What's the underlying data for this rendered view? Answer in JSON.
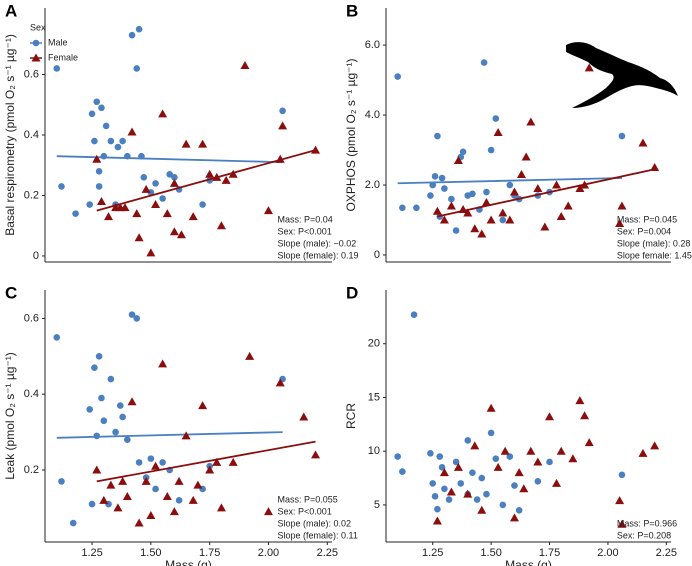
{
  "chart_data": [
    {
      "type": "scatter",
      "panel_label": "A",
      "ylabel": "Basal respirometry (pmol O₂ s⁻¹ µg⁻¹)",
      "xlim": [
        1.05,
        2.27
      ],
      "ylim": [
        -0.02,
        0.82
      ],
      "yticks": [
        0,
        0.2,
        0.4,
        0.6
      ],
      "legend": {
        "title": "Sex",
        "position": "top-left"
      },
      "series": [
        {
          "name": "Male",
          "color": "#4a7fc0",
          "marker": "circle",
          "x": [
            1.1,
            1.12,
            1.18,
            1.24,
            1.25,
            1.26,
            1.27,
            1.28,
            1.28,
            1.29,
            1.3,
            1.31,
            1.33,
            1.35,
            1.36,
            1.38,
            1.4,
            1.42,
            1.44,
            1.45,
            1.46,
            1.47,
            1.5,
            1.52,
            1.55,
            1.58,
            1.6,
            1.62,
            1.72,
            1.75,
            2.06
          ],
          "values": [
            0.62,
            0.23,
            0.14,
            0.17,
            0.47,
            0.38,
            0.51,
            0.28,
            0.23,
            0.49,
            0.33,
            0.43,
            0.38,
            0.17,
            0.36,
            0.38,
            0.33,
            0.73,
            0.62,
            0.75,
            0.33,
            0.26,
            0.21,
            0.24,
            0.19,
            0.27,
            0.26,
            0.22,
            0.17,
            0.25,
            0.48
          ],
          "trend": {
            "x": [
              1.1,
              2.06
            ],
            "values": [
              0.33,
              0.31
            ]
          }
        },
        {
          "name": "Female",
          "color": "#8b0e0e",
          "marker": "triangle",
          "x": [
            1.27,
            1.29,
            1.32,
            1.35,
            1.37,
            1.39,
            1.42,
            1.44,
            1.45,
            1.48,
            1.5,
            1.52,
            1.55,
            1.57,
            1.6,
            1.63,
            1.65,
            1.68,
            1.72,
            1.75,
            1.78,
            1.82,
            1.85,
            1.9,
            2.0,
            2.06,
            2.05,
            2.2,
            1.8,
            1.6
          ],
          "values": [
            0.32,
            0.18,
            0.13,
            0.16,
            0.16,
            0.16,
            0.41,
            0.14,
            0.06,
            0.22,
            0.01,
            0.17,
            0.47,
            0.14,
            0.08,
            0.07,
            0.37,
            0.13,
            0.37,
            0.27,
            0.26,
            0.25,
            0.27,
            0.63,
            0.15,
            0.43,
            0.32,
            0.35,
            0.1,
            0.24
          ],
          "trend": {
            "x": [
              1.27,
              2.2
            ],
            "values": [
              0.15,
              0.35
            ]
          }
        }
      ],
      "annotations": [
        "Mass: P=0.04",
        "Sex: P<0.001",
        "Slope (male): −0.02",
        "Slope (female): 0.19"
      ]
    },
    {
      "type": "scatter",
      "panel_label": "B",
      "ylabel": "OXPHOS (pmol O₂ s⁻¹ µg⁻¹)",
      "xlim": [
        1.05,
        2.27
      ],
      "ylim": [
        -0.2,
        7.06
      ],
      "yticks": [
        0,
        {
          "value": 2,
          "label": "2.0"
        },
        {
          "value": 4,
          "label": "4.0"
        },
        {
          "value": 6,
          "label": "6.0"
        }
      ],
      "series": [
        {
          "color": "#4a7fc0",
          "marker": "circle",
          "x": [
            1.1,
            1.12,
            1.18,
            1.24,
            1.25,
            1.26,
            1.27,
            1.28,
            1.29,
            1.3,
            1.33,
            1.35,
            1.37,
            1.38,
            1.4,
            1.42,
            1.45,
            1.47,
            1.48,
            1.5,
            1.52,
            1.55,
            1.58,
            1.6,
            1.62,
            1.7,
            1.75,
            2.06
          ],
          "values": [
            5.1,
            1.35,
            1.35,
            1.7,
            2.0,
            2.25,
            3.4,
            1.1,
            2.2,
            1.9,
            1.6,
            0.7,
            2.8,
            2.95,
            1.7,
            1.75,
            1.3,
            5.5,
            1.8,
            3.0,
            3.9,
            1.0,
            2.0,
            1.7,
            1.6,
            1.7,
            1.8,
            3.4
          ],
          "trend": {
            "x": [
              1.1,
              2.06
            ],
            "values": [
              2.05,
              2.2
            ]
          }
        },
        {
          "color": "#8b0e0e",
          "marker": "triangle",
          "x": [
            1.27,
            1.3,
            1.33,
            1.36,
            1.38,
            1.4,
            1.43,
            1.46,
            1.48,
            1.5,
            1.53,
            1.55,
            1.58,
            1.6,
            1.63,
            1.65,
            1.67,
            1.7,
            1.73,
            1.78,
            1.8,
            1.83,
            1.88,
            1.9,
            1.92,
            2.05,
            2.06,
            2.15,
            2.2
          ],
          "values": [
            1.25,
            1.0,
            1.4,
            2.7,
            1.3,
            1.2,
            0.75,
            0.6,
            1.5,
            1.0,
            3.5,
            1.2,
            1.0,
            1.8,
            2.3,
            2.8,
            3.8,
            1.9,
            0.8,
            2.0,
            1.1,
            1.4,
            1.9,
            2.0,
            5.35,
            0.9,
            1.4,
            3.2,
            2.5
          ],
          "trend": {
            "x": [
              1.27,
              2.2
            ],
            "values": [
              1.1,
              2.45
            ]
          }
        }
      ],
      "annotations": [
        "Mass: P=0.045",
        "Sex: P=0.004",
        "Slope (male): 0.28",
        "Slope female: 1.45"
      ]
    },
    {
      "type": "scatter",
      "panel_label": "C",
      "ylabel": "Leak (pmol O₂ s⁻¹ µg⁻¹)",
      "xlabel": "Mass (g)",
      "xlim": [
        1.05,
        2.27
      ],
      "ylim": [
        0.01,
        0.675
      ],
      "yticks": [
        0.2,
        0.4,
        0.6
      ],
      "xticks": [
        1.25,
        {
          "value": 1.5,
          "label": "1.50"
        },
        1.75,
        {
          "value": 2,
          "label": "2.00"
        },
        2.25
      ],
      "series": [
        {
          "color": "#4a7fc0",
          "marker": "circle",
          "x": [
            1.1,
            1.12,
            1.17,
            1.24,
            1.25,
            1.26,
            1.27,
            1.28,
            1.29,
            1.3,
            1.32,
            1.33,
            1.35,
            1.37,
            1.38,
            1.4,
            1.42,
            1.44,
            1.45,
            1.48,
            1.5,
            1.52,
            1.55,
            1.58,
            1.62,
            1.72,
            1.75,
            2.06
          ],
          "values": [
            0.55,
            0.17,
            0.06,
            0.36,
            0.11,
            0.47,
            0.29,
            0.5,
            0.39,
            0.33,
            0.11,
            0.44,
            0.3,
            0.37,
            0.34,
            0.28,
            0.61,
            0.6,
            0.22,
            0.18,
            0.23,
            0.15,
            0.22,
            0.2,
            0.12,
            0.15,
            0.21,
            0.44
          ],
          "trend": {
            "x": [
              1.1,
              2.06
            ],
            "values": [
              0.285,
              0.3
            ]
          }
        },
        {
          "color": "#8b0e0e",
          "marker": "triangle",
          "x": [
            1.27,
            1.3,
            1.33,
            1.36,
            1.38,
            1.4,
            1.42,
            1.45,
            1.48,
            1.5,
            1.52,
            1.55,
            1.57,
            1.6,
            1.62,
            1.65,
            1.68,
            1.72,
            1.75,
            1.78,
            1.8,
            1.85,
            1.92,
            2.0,
            2.05,
            2.15,
            2.2,
            1.7
          ],
          "values": [
            0.2,
            0.12,
            0.16,
            0.1,
            0.17,
            0.13,
            0.38,
            0.06,
            0.17,
            0.08,
            0.21,
            0.48,
            0.13,
            0.09,
            0.17,
            0.29,
            0.12,
            0.37,
            0.2,
            0.22,
            0.1,
            0.22,
            0.5,
            0.09,
            0.43,
            0.34,
            0.24,
            0.16
          ],
          "trend": {
            "x": [
              1.27,
              2.2
            ],
            "values": [
              0.17,
              0.275
            ]
          }
        }
      ],
      "annotations": [
        "Mass: P=0.055",
        "Sex: P<0.001",
        "Slope (male): 0.02",
        "Slope (female): 0.11"
      ]
    },
    {
      "type": "scatter",
      "panel_label": "D",
      "ylabel": "RCR",
      "xlabel": "Mass (g)",
      "xlim": [
        1.05,
        2.27
      ],
      "ylim": [
        1.55,
        25
      ],
      "yticks": [
        5,
        10,
        15,
        20
      ],
      "xticks": [
        1.25,
        {
          "value": 1.5,
          "label": "1.50"
        },
        1.75,
        {
          "value": 2,
          "label": "2.00"
        },
        2.25
      ],
      "series": [
        {
          "color": "#4a7fc0",
          "marker": "circle",
          "x": [
            1.1,
            1.12,
            1.17,
            1.24,
            1.25,
            1.26,
            1.27,
            1.28,
            1.29,
            1.3,
            1.32,
            1.35,
            1.37,
            1.4,
            1.42,
            1.44,
            1.46,
            1.48,
            1.5,
            1.52,
            1.55,
            1.58,
            1.6,
            1.62,
            1.7,
            1.75,
            2.06,
            1.4
          ],
          "values": [
            9.5,
            8.1,
            22.7,
            9.8,
            7.0,
            5.8,
            4.6,
            9.5,
            8.5,
            6.5,
            5.5,
            9.0,
            7.0,
            6.0,
            8.0,
            5.5,
            7.5,
            6.0,
            11.7,
            9.3,
            5.0,
            9.5,
            6.8,
            4.5,
            7.2,
            9.0,
            7.8,
            11.0
          ]
        },
        {
          "color": "#8b0e0e",
          "marker": "triangle",
          "x": [
            1.27,
            1.3,
            1.33,
            1.36,
            1.4,
            1.43,
            1.46,
            1.5,
            1.53,
            1.56,
            1.6,
            1.62,
            1.64,
            1.67,
            1.7,
            1.75,
            1.78,
            1.8,
            1.85,
            1.88,
            1.9,
            1.92,
            2.05,
            2.06,
            2.15,
            2.2
          ],
          "values": [
            3.5,
            8.0,
            6.2,
            8.5,
            6.0,
            10.5,
            4.5,
            14.0,
            8.5,
            10.0,
            3.8,
            8.0,
            6.5,
            10.0,
            9.0,
            13.2,
            7.0,
            10.0,
            9.3,
            14.7,
            13.3,
            10.8,
            5.4,
            3.2,
            9.8,
            10.5
          ]
        }
      ],
      "annotations": [
        "Mass: P=0.966",
        "Sex: P=0.208"
      ]
    }
  ]
}
